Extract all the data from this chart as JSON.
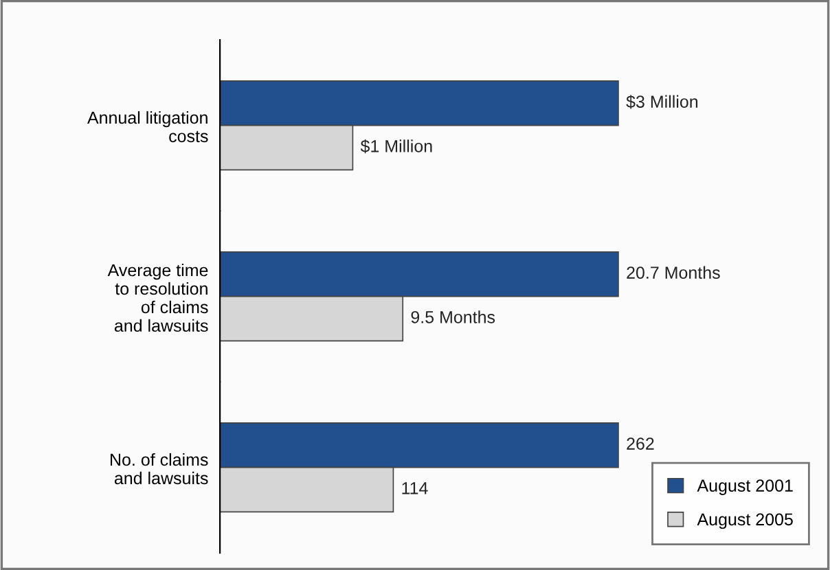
{
  "chart_data": [
    {
      "type": "bar",
      "orientation": "horizontal",
      "categories": [
        "Annual litigation\ncosts"
      ],
      "tick_labels": "y",
      "series": [
        {
          "color": "#22508f",
          "values": [
            3
          ],
          "value_labels": [
            "$3 Million"
          ]
        },
        {
          "color": "#d6d6d6",
          "values": [
            1
          ],
          "value_labels": [
            "$1 Million"
          ]
        }
      ]
    },
    {
      "type": "bar",
      "orientation": "horizontal",
      "categories": [
        "Average time\nto resolution\nof claims\nand lawsuits"
      ],
      "tick_labels": "y",
      "series": [
        {
          "color": "#22508f",
          "values": [
            20.7
          ],
          "value_labels": [
            "20.7 Months"
          ]
        },
        {
          "color": "#d6d6d6",
          "values": [
            9.5
          ],
          "value_labels": [
            "9.5 Months"
          ]
        }
      ]
    },
    {
      "type": "bar",
      "orientation": "horizontal",
      "categories": [
        "No. of claims\nand lawsuits"
      ],
      "tick_labels": "y",
      "legend": "bottom right",
      "series": [
        {
          "name": "August 2001",
          "color": "#22508f",
          "values": [
            262
          ],
          "value_labels": [
            "262"
          ]
        },
        {
          "name": "August 2005",
          "color": "#d6d6d6",
          "values": [
            114
          ],
          "value_labels": [
            "114"
          ]
        }
      ]
    }
  ]
}
